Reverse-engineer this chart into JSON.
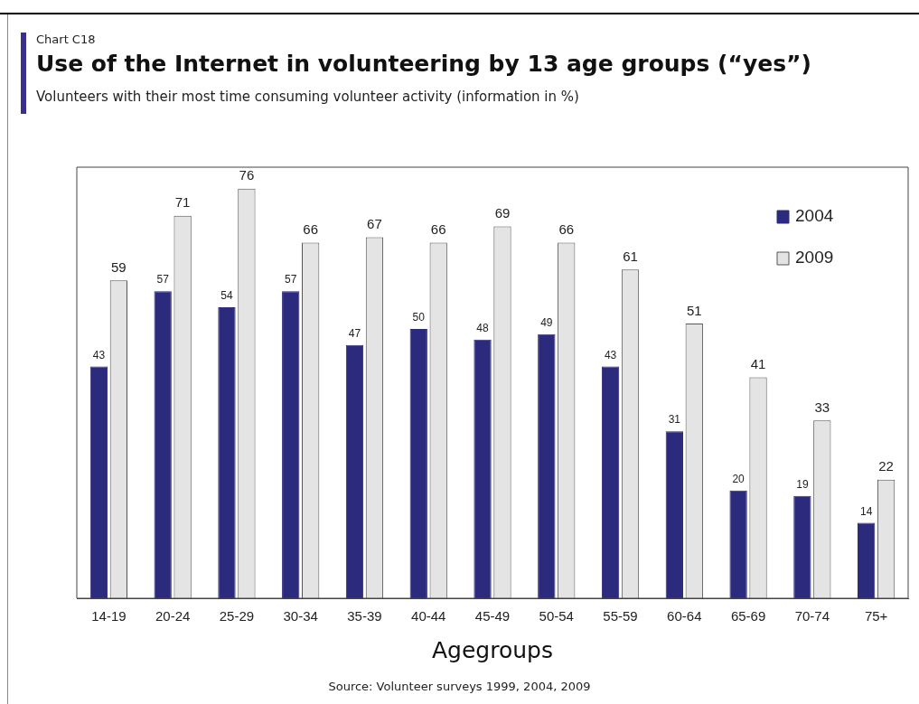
{
  "chart_data": {
    "type": "bar",
    "title": "Use of the Internet in volunteering by 13 age groups (“yes”)",
    "subtitle": "Volunteers with their most time consuming volunteer activity (information in %)",
    "xlabel": "Agegroups",
    "annotations": [
      "Chart C18",
      "Source: Volunteer surveys 1999, 2004, 2009"
    ],
    "categories": [
      "14-19",
      "20-24",
      "25-29",
      "30-34",
      "35-39",
      "40-44",
      "45-49",
      "50-54",
      "55-59",
      "60-64",
      "65-69",
      "70-74",
      "75+"
    ],
    "series": [
      {
        "name": "2004",
        "color": "#2c2a7c",
        "values": [
          43,
          57,
          54,
          57,
          47,
          50,
          48,
          49,
          43,
          31,
          20,
          19,
          14
        ]
      },
      {
        "name": "2009",
        "color": "#e4e4e4",
        "values": [
          59,
          71,
          76,
          66,
          67,
          66,
          69,
          66,
          61,
          51,
          41,
          33,
          22
        ]
      }
    ],
    "data_labels": true,
    "grid": false,
    "legend": "top right"
  }
}
